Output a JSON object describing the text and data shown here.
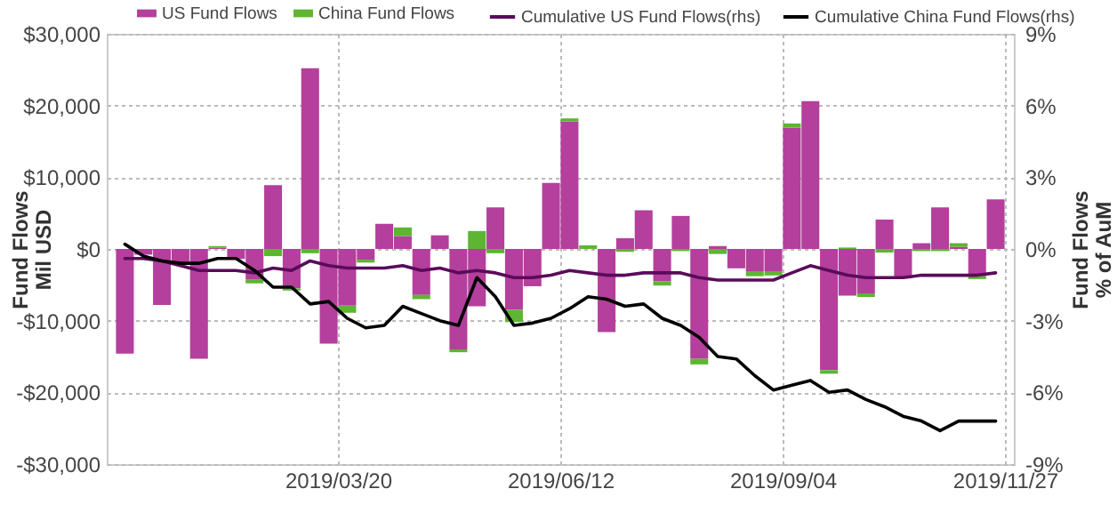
{
  "chart_data": {
    "type": "bar",
    "stacked": true,
    "legend": "top",
    "grid": true,
    "ylabel": "Fund Flows\nMil USD",
    "y2label": "Fund Flows\n% of AuM",
    "x": [
      "2018-12-29T12:00",
      "2019-01-05T12:00",
      "2019-01-12T12:00",
      "2019-01-19T12:00",
      "2019-01-26T12:00",
      "2019-02-02T12:00",
      "2019-02-09T12:00",
      "2019-02-16T12:00",
      "2019-02-23T12:00",
      "2019-03-02T12:00",
      "2019-03-09T12:00",
      "2019-03-16T12:00",
      "2019-03-23T12:00",
      "2019-03-30T12:00",
      "2019-04-06T12:00",
      "2019-04-13T12:00",
      "2019-04-20T12:00",
      "2019-04-27T12:00",
      "2019-05-04T12:00",
      "2019-05-11T12:00",
      "2019-05-18T12:00",
      "2019-05-25T12:00",
      "2019-06-01T12:00",
      "2019-06-08T12:00",
      "2019-06-15T12:00",
      "2019-06-22T12:00",
      "2019-06-29T12:00",
      "2019-07-06T12:00",
      "2019-07-13T12:00",
      "2019-07-20T12:00",
      "2019-07-27T12:00",
      "2019-08-03T12:00",
      "2019-08-10T12:00",
      "2019-08-17T12:00",
      "2019-08-24T12:00",
      "2019-08-31T12:00",
      "2019-09-07T12:00",
      "2019-09-14T12:00",
      "2019-09-21T12:00",
      "2019-09-28T12:00",
      "2019-10-05T12:00",
      "2019-10-12T12:00",
      "2019-10-19T12:00",
      "2019-10-26T12:00",
      "2019-11-02T12:00",
      "2019-11-09T12:00",
      "2019-11-16T12:00",
      "2019-11-23T12:00"
    ],
    "xlim": [
      "2018-12-26",
      "2019-11-27"
    ],
    "xticks": [
      {
        "value": "2019-03-20",
        "label": "2019/03/20"
      },
      {
        "value": "2019-06-12",
        "label": "2019/06/12"
      },
      {
        "value": "2019-09-04",
        "label": "2019/09/04"
      },
      {
        "value": "2019-11-27",
        "label": "2019/11/27"
      }
    ],
    "ylim": [
      -30000,
      30000
    ],
    "yticks": [
      {
        "value": -30000,
        "label": "-$30,000"
      },
      {
        "value": -20000,
        "label": "-$20,000"
      },
      {
        "value": -10000,
        "label": "-$10,000"
      },
      {
        "value": 0,
        "label": "$0"
      },
      {
        "value": 10000,
        "label": "$10,000"
      },
      {
        "value": 20000,
        "label": "$20,000"
      },
      {
        "value": 30000,
        "label": "$30,000"
      }
    ],
    "y2lim": [
      -9,
      9
    ],
    "y2ticks": [
      {
        "value": -9,
        "label": "-9%"
      },
      {
        "value": -6,
        "label": "-6%"
      },
      {
        "value": -3,
        "label": "-3%"
      },
      {
        "value": 0,
        "label": "0%"
      },
      {
        "value": 3,
        "label": "3%"
      },
      {
        "value": 6,
        "label": "6%"
      },
      {
        "value": 9,
        "label": "9%"
      }
    ],
    "series": [
      {
        "name": "US Fund Flows",
        "color": "#b43f9c",
        "values": [
          -14600,
          -800,
          -7800,
          -2000,
          -15300,
          200,
          -1400,
          -4300,
          8900,
          -5500,
          25200,
          -13200,
          -7900,
          -1500,
          3500,
          1800,
          -6400,
          1900,
          -14000,
          -8000,
          5800,
          -8500,
          -5200,
          9200,
          17800,
          0,
          -11600,
          1500,
          5400,
          -4500,
          4600,
          -15300,
          400,
          -2700,
          -3100,
          -3100,
          16900,
          20600,
          -16900,
          -6500,
          -6200,
          4100,
          -4100,
          800,
          5800,
          300,
          -3800,
          6900
        ]
      },
      {
        "name": "China Fund Flows",
        "color": "#5db531",
        "values": [
          0,
          0,
          0,
          null,
          0,
          200,
          0,
          -500,
          -1000,
          -300,
          -600,
          0,
          -1000,
          -400,
          0,
          1200,
          -600,
          0,
          -400,
          2500,
          -600,
          -1700,
          0,
          0,
          400,
          500,
          0,
          -400,
          0,
          -600,
          -300,
          -800,
          -700,
          0,
          -700,
          -600,
          600,
          0,
          -500,
          200,
          -500,
          -500,
          0,
          -300,
          -300,
          500,
          -400,
          0
        ]
      },
      {
        "name": "Cumulative US Fund Flows(rhs)",
        "type": "line",
        "axis": "y2",
        "color": "#5a0b5a",
        "values": [
          -0.4,
          -0.4,
          -0.5,
          -0.7,
          -0.9,
          -0.9,
          -0.9,
          -1.0,
          -0.8,
          -0.9,
          -0.5,
          -0.7,
          -0.8,
          -0.8,
          -0.8,
          -0.7,
          -0.9,
          -0.8,
          -1.0,
          -0.9,
          -1.0,
          -1.2,
          -1.2,
          -1.1,
          -0.9,
          -1.0,
          -1.1,
          -1.1,
          -1.0,
          -1.0,
          -1.0,
          -1.2,
          -1.3,
          -1.3,
          -1.3,
          -1.3,
          -1.0,
          -0.7,
          -0.9,
          -1.1,
          -1.2,
          -1.2,
          -1.2,
          -1.1,
          -1.1,
          -1.1,
          -1.1,
          -1.0
        ]
      },
      {
        "name": "Cumulative China Fund Flows(rhs)",
        "type": "line",
        "axis": "y2",
        "color": "#000000",
        "values": [
          0.2,
          -0.3,
          -0.5,
          -0.6,
          -0.6,
          -0.4,
          -0.4,
          -0.9,
          -1.6,
          -1.6,
          -2.3,
          -2.2,
          -2.9,
          -3.3,
          -3.2,
          -2.4,
          -2.7,
          -3.0,
          -3.2,
          -1.2,
          -2.0,
          -3.2,
          -3.1,
          -2.9,
          -2.5,
          -2.0,
          -2.1,
          -2.4,
          -2.3,
          -2.9,
          -3.2,
          -3.7,
          -4.5,
          -4.6,
          -5.3,
          -5.9,
          -5.7,
          -5.5,
          -6.0,
          -5.9,
          -6.3,
          -6.6,
          -7.0,
          -7.2,
          -7.6,
          -7.2,
          -7.2,
          -7.2
        ]
      }
    ]
  }
}
